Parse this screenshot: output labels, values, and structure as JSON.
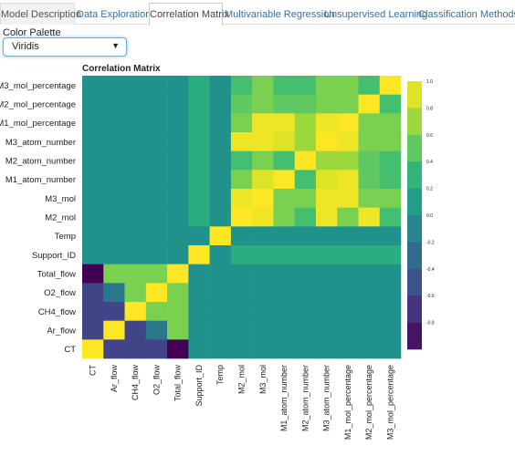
{
  "tabs": [
    {
      "label": "Model Description",
      "state": "default"
    },
    {
      "label": "Data Exploration",
      "state": "default"
    },
    {
      "label": "Correlation Matrix",
      "state": "active"
    },
    {
      "label": "Multivariable Regression",
      "state": "default"
    },
    {
      "label": "Unsupervised Learning",
      "state": "default"
    },
    {
      "label": "Classification Methods",
      "state": "default"
    }
  ],
  "color_palette": {
    "label": "Color Palette",
    "selected": "Viridis"
  },
  "chart_data": {
    "type": "heatmap",
    "title": "Correlation Matrix",
    "colorscale": "Viridis",
    "zlim": [
      -1,
      1
    ],
    "colorbar_ticks": [
      "1.0",
      "0.8",
      "0.6",
      "0.4",
      "0.2",
      "0.0",
      "-0.2",
      "-0.4",
      "-0.6",
      "-0.8"
    ],
    "x_labels": [
      "CT",
      "Ar_flow",
      "CH4_flow",
      "O2_flow",
      "Total_flow",
      "Support_ID",
      "Temp",
      "M2_mol",
      "M3_mol",
      "M1_atom_number",
      "M2_atom_number",
      "M3_atom_number",
      "M1_mol_percentage",
      "M2_mol_percentage",
      "M3_mol_percentage"
    ],
    "y_labels_top_to_bottom": [
      "M3_mol_percentage",
      "M2_mol_percentage",
      "M1_mol_percentage",
      "M3_atom_number",
      "M2_atom_number",
      "M1_atom_number",
      "M3_mol",
      "M2_mol",
      "Temp",
      "Support_ID",
      "Total_flow",
      "O2_flow",
      "CH4_flow",
      "Ar_flow",
      "CT"
    ],
    "z_rows_top_to_bottom": [
      [
        0,
        0,
        0,
        0,
        0,
        0.25,
        0,
        0.4,
        0.6,
        0.4,
        0.4,
        0.6,
        0.6,
        0.4,
        1.0
      ],
      [
        0,
        0,
        0,
        0,
        0,
        0.25,
        0,
        0.5,
        0.6,
        0.5,
        0.5,
        0.6,
        0.6,
        1.0,
        0.4
      ],
      [
        0,
        0,
        0,
        0,
        0,
        0.25,
        0,
        0.6,
        0.95,
        0.95,
        0.7,
        0.95,
        1.0,
        0.6,
        0.6
      ],
      [
        0,
        0,
        0,
        0,
        0,
        0.25,
        0,
        0.95,
        0.95,
        0.9,
        0.7,
        1.0,
        0.95,
        0.6,
        0.6
      ],
      [
        0,
        0,
        0,
        0,
        0,
        0.25,
        0,
        0.4,
        0.6,
        0.4,
        1.0,
        0.7,
        0.7,
        0.5,
        0.4
      ],
      [
        0,
        0,
        0,
        0,
        0,
        0.25,
        0,
        0.6,
        0.9,
        1.0,
        0.4,
        0.9,
        0.95,
        0.5,
        0.4
      ],
      [
        0,
        0,
        0,
        0,
        0,
        0.25,
        0,
        0.95,
        1.0,
        0.6,
        0.6,
        0.95,
        0.95,
        0.6,
        0.6
      ],
      [
        0,
        0,
        0,
        0,
        0,
        0.25,
        0,
        1.0,
        0.95,
        0.6,
        0.4,
        0.95,
        0.6,
        0.95,
        0.4
      ],
      [
        0,
        0,
        0,
        0,
        0,
        0,
        1.0,
        0,
        0,
        0,
        0,
        0,
        0,
        0,
        0
      ],
      [
        0,
        0,
        0,
        0,
        0,
        1.0,
        0,
        0.25,
        0.25,
        0.25,
        0.25,
        0.25,
        0.25,
        0.25,
        0.25
      ],
      [
        -1.0,
        0.6,
        0.6,
        0.6,
        1.0,
        0,
        0,
        0,
        0,
        0,
        0,
        0,
        0,
        0,
        0
      ],
      [
        -0.6,
        -0.2,
        0.6,
        1.0,
        0.6,
        0,
        0,
        0,
        0,
        0,
        0,
        0,
        0,
        0,
        0
      ],
      [
        -0.6,
        -0.6,
        1.0,
        0.6,
        0.6,
        0,
        0,
        0,
        0,
        0,
        0,
        0,
        0,
        0,
        0
      ],
      [
        -0.6,
        1.0,
        -0.6,
        -0.2,
        0.6,
        0,
        0,
        0,
        0,
        0,
        0,
        0,
        0,
        0,
        0
      ],
      [
        1.0,
        -0.6,
        -0.6,
        -0.6,
        -1.0,
        0,
        0,
        0,
        0,
        0,
        0,
        0,
        0,
        0,
        0
      ]
    ]
  }
}
